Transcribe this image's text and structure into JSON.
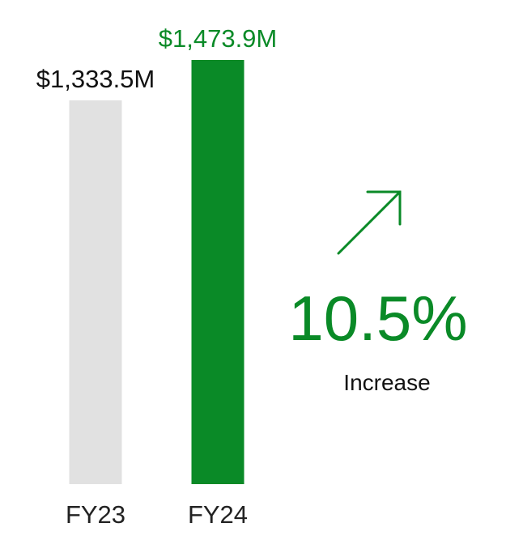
{
  "chart_data": {
    "type": "bar",
    "categories": [
      "FY23",
      "FY24"
    ],
    "values": [
      1333.5,
      1473.9
    ],
    "value_labels": [
      "$1,333.5M",
      "$1,473.9M"
    ],
    "bar_colors": [
      "#e1e1e1",
      "#0a8a27"
    ],
    "value_label_colors": [
      "#111111",
      "#0a8a27"
    ],
    "ylim": [
      0,
      1473.9
    ],
    "grid": false,
    "title": "",
    "xlabel": "",
    "ylabel": ""
  },
  "callout": {
    "icon": "arrow-up-right-icon",
    "percent": "10.5%",
    "caption": "Increase",
    "color": "#0a8a27"
  }
}
